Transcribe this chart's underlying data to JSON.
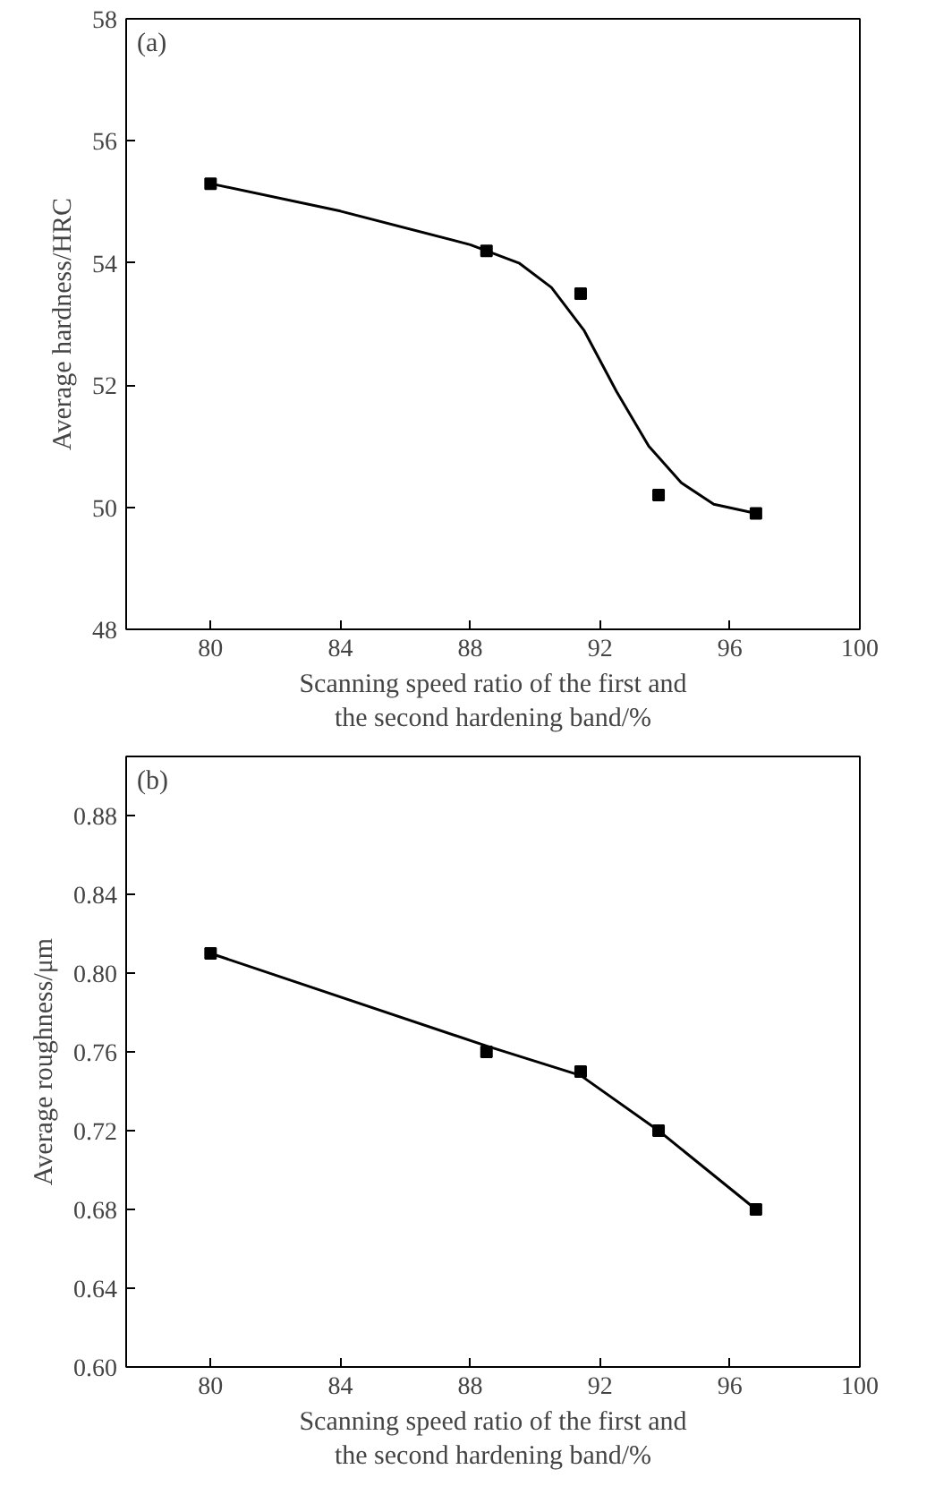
{
  "chart_data": [
    {
      "type": "scatter",
      "xlabel": "Scanning speed ratio of the first and\nthe second hardening band/%",
      "ylabel": "Average hardness/HRC",
      "annotations": [
        "(a)"
      ],
      "xlim": [
        77.4,
        100
      ],
      "xticks": [
        80,
        84,
        88,
        92,
        96,
        100
      ],
      "ylim": [
        48,
        58
      ],
      "yticks": [
        48,
        50,
        52,
        54,
        56,
        58
      ],
      "grid": false,
      "marker": "square",
      "series": [
        {
          "color": "#000000",
          "x": [
            80,
            88.5,
            91.4,
            93.8,
            96.8
          ],
          "values": [
            55.3,
            54.2,
            53.5,
            50.2,
            49.9
          ]
        },
        {
          "type": "line",
          "color": "#000000",
          "line_style": "solid",
          "marker": "none",
          "x": [
            80,
            84,
            88,
            89.5,
            90.5,
            91.5,
            92.5,
            93.5,
            94.5,
            95.5,
            96.8
          ],
          "values": [
            55.3,
            54.85,
            54.3,
            54.0,
            53.6,
            52.9,
            51.9,
            51.0,
            50.4,
            50.05,
            49.9
          ]
        }
      ]
    },
    {
      "type": "scatter",
      "xlabel": "Scanning speed ratio of the first and\nthe second hardening band/%",
      "ylabel": "Average roughness/μm",
      "annotations": [
        "(b)"
      ],
      "xlim": [
        77.4,
        100
      ],
      "xticks": [
        80,
        84,
        88,
        92,
        96,
        100
      ],
      "ylim": [
        0.6,
        0.91
      ],
      "yticks": [
        {
          "value": 0.6,
          "label": "0.60"
        },
        0.64,
        0.68,
        0.72,
        0.76,
        {
          "value": 0.8,
          "label": "0.80"
        },
        0.84,
        0.88
      ],
      "grid": false,
      "marker": "square",
      "series": [
        {
          "color": "#000000",
          "x": [
            80,
            88.5,
            91.4,
            93.8,
            96.8
          ],
          "values": [
            0.81,
            0.76,
            0.75,
            0.72,
            0.68
          ]
        },
        {
          "type": "line",
          "color": "#000000",
          "line_style": "solid",
          "marker": "none",
          "x": [
            80,
            88.5,
            91.4,
            93.8,
            96.8
          ],
          "values": [
            0.81,
            0.763,
            0.748,
            0.72,
            0.68
          ]
        }
      ]
    }
  ]
}
